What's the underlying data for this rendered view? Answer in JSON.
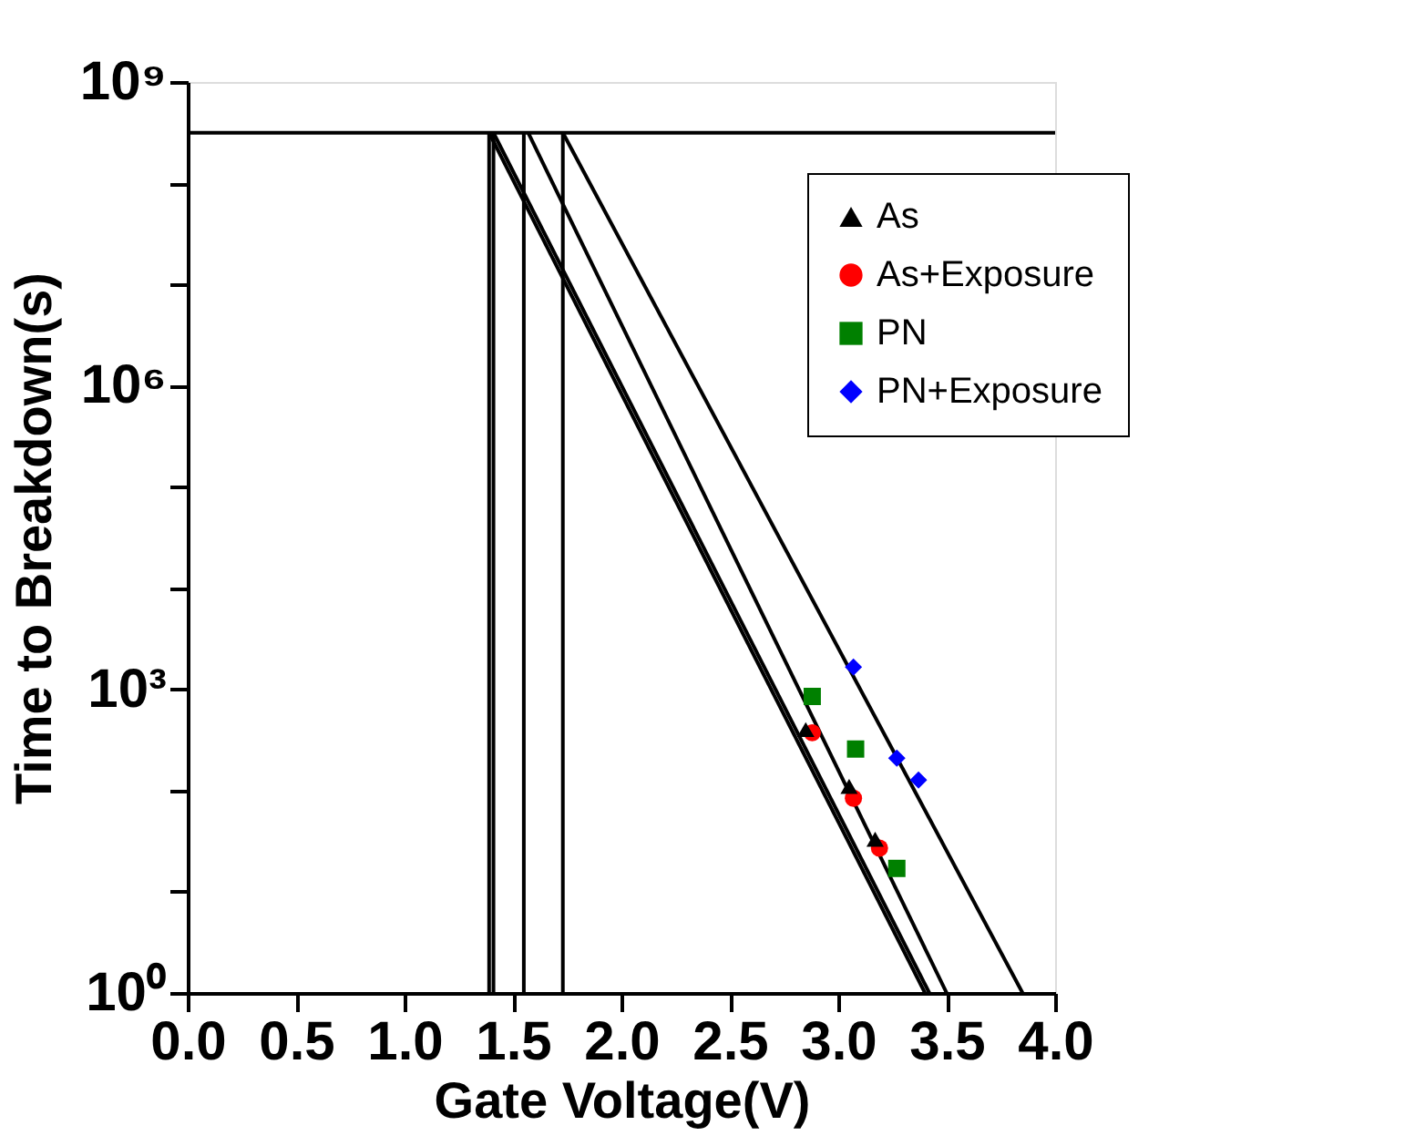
{
  "chart_data": {
    "type": "scatter",
    "xlabel": "Gate Voltage(V)",
    "ylabel": "Time to Breakdown(s)",
    "xlim": [
      0,
      4
    ],
    "xticks": [
      {
        "value": 0,
        "label": "0.0"
      },
      {
        "value": 0.5,
        "label": "0.5"
      },
      {
        "value": 1,
        "label": "1.0"
      },
      {
        "value": 1.5,
        "label": "1.5"
      },
      {
        "value": 2,
        "label": "2.0"
      },
      {
        "value": 2.5,
        "label": "2.5"
      },
      {
        "value": 3,
        "label": "3.0"
      },
      {
        "value": 3.5,
        "label": "3.5"
      },
      {
        "value": 4,
        "label": "4.0"
      }
    ],
    "ylim": [
      1,
      1000000000
    ],
    "log": "y",
    "yticks": [
      {
        "value": 1,
        "label": "10⁰"
      },
      {
        "value": 10,
        "label": null
      },
      {
        "value": 100,
        "label": null
      },
      {
        "value": 1000,
        "label": "10³"
      },
      {
        "value": 10000,
        "label": null
      },
      {
        "value": 100000,
        "label": null
      },
      {
        "value": 1000000,
        "label": "10⁶"
      },
      {
        "value": 10000000,
        "label": null
      },
      {
        "value": 100000000,
        "label": null
      },
      {
        "value": 1000000000,
        "label": "10⁹"
      }
    ],
    "grid": false,
    "legend": "top right",
    "series": [
      {
        "name": "As",
        "color": "#000000",
        "marker": "triangle",
        "x": [
          2.85,
          3.05,
          3.17
        ],
        "values": [
          400,
          110,
          33
        ]
      },
      {
        "name": "As+Exposure",
        "color": "#ff0000",
        "marker": "circle",
        "x": [
          2.88,
          3.07,
          3.19
        ],
        "values": [
          372,
          84,
          27
        ]
      },
      {
        "name": "PN",
        "color": "#008000",
        "marker": "square",
        "x": [
          2.88,
          3.08,
          3.27
        ],
        "values": [
          850,
          257,
          17
        ]
      },
      {
        "name": "PN+Exposure",
        "color": "#0000ff",
        "marker": "diamond",
        "x": [
          3.07,
          3.27,
          3.37
        ],
        "values": [
          1660,
          209,
          127
        ]
      },
      {
        "type": "line",
        "color": "#000000",
        "x": [
          1.39,
          3.4
        ],
        "values": [
          315000000,
          1
        ]
      },
      {
        "type": "line",
        "color": "#000000",
        "x": [
          1.41,
          3.42
        ],
        "values": [
          315000000,
          1
        ]
      },
      {
        "type": "line",
        "color": "#000000",
        "x": [
          1.57,
          3.5
        ],
        "values": [
          315000000,
          1
        ]
      },
      {
        "type": "line",
        "color": "#000000",
        "x": [
          1.73,
          3.85
        ],
        "values": [
          315000000,
          1
        ]
      }
    ],
    "ref_lines": [
      {
        "axis": "y",
        "value": 315000000
      },
      {
        "axis": "x",
        "value": 1.39
      },
      {
        "axis": "x",
        "value": 1.41
      },
      {
        "axis": "x",
        "value": 1.55
      },
      {
        "axis": "x",
        "value": 1.73
      }
    ]
  }
}
